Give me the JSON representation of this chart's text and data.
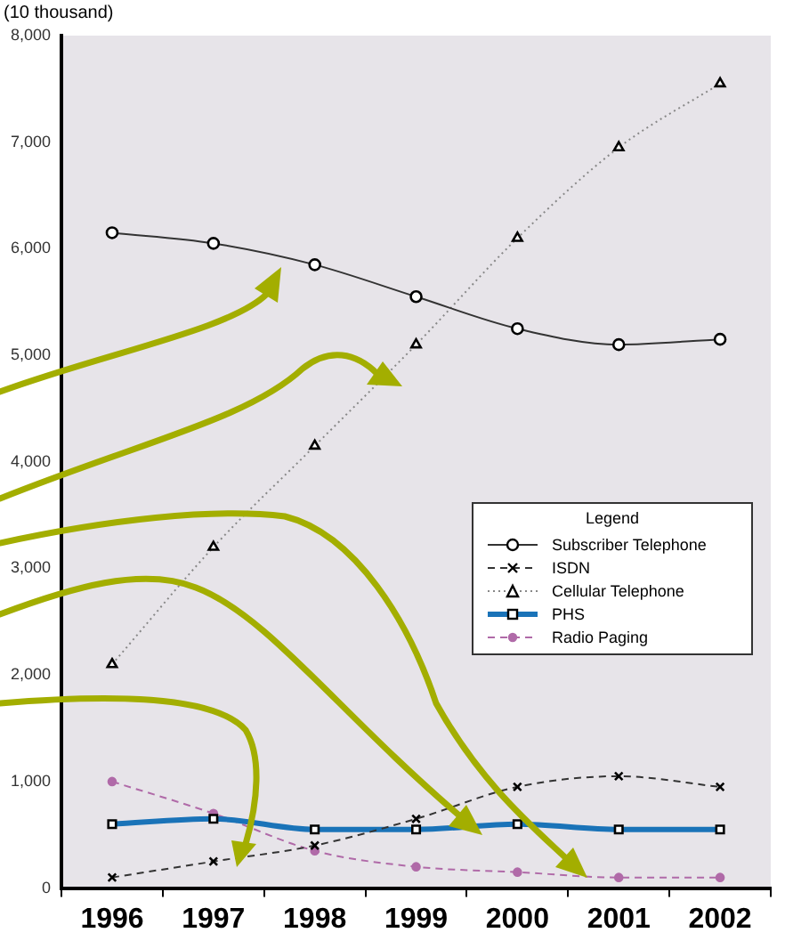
{
  "chart_data": {
    "type": "line",
    "ylabel": "(10 thousand)",
    "legend_title": "Legend",
    "categories": [
      "1996",
      "1997",
      "1998",
      "1999",
      "2000",
      "2001",
      "2002"
    ],
    "ylim": [
      0,
      8000
    ],
    "yticks": [
      {
        "value": 0,
        "label": "0"
      },
      {
        "value": 1000,
        "label": "1,000"
      },
      {
        "value": 2000,
        "label": "2,000"
      },
      {
        "value": 3000,
        "label": "3,000"
      },
      {
        "value": 4000,
        "label": "4,000"
      },
      {
        "value": 5000,
        "label": "5,000"
      },
      {
        "value": 6000,
        "label": "6,000"
      },
      {
        "value": 7000,
        "label": "7,000"
      },
      {
        "value": 8000,
        "label": "8,000"
      }
    ],
    "grid": false,
    "legend": "right",
    "series": [
      {
        "name": "Subscriber Telephone",
        "color": "#333333",
        "marker": "circle",
        "line_style": "solid",
        "values": [
          6150,
          6050,
          5850,
          5550,
          5250,
          5100,
          5150
        ]
      },
      {
        "name": "ISDN",
        "color": "#333333",
        "marker": "cross",
        "line_style": "dashed",
        "values": [
          100,
          250,
          400,
          650,
          950,
          1050,
          950
        ]
      },
      {
        "name": "Cellular Telephone",
        "color": "#888888",
        "marker": "triangle",
        "line_style": "dotted",
        "values": [
          2100,
          3200,
          4150,
          5100,
          6100,
          6950,
          7550
        ]
      },
      {
        "name": "PHS",
        "color": "#1a73b8",
        "marker": "square",
        "line_style": "solid",
        "values": [
          600,
          650,
          550,
          550,
          600,
          550,
          550
        ]
      },
      {
        "name": "Radio Paging",
        "color": "#b06aa8",
        "marker": "circle",
        "line_style": "dashed",
        "values": [
          1000,
          700,
          350,
          200,
          150,
          100,
          100
        ]
      }
    ]
  }
}
